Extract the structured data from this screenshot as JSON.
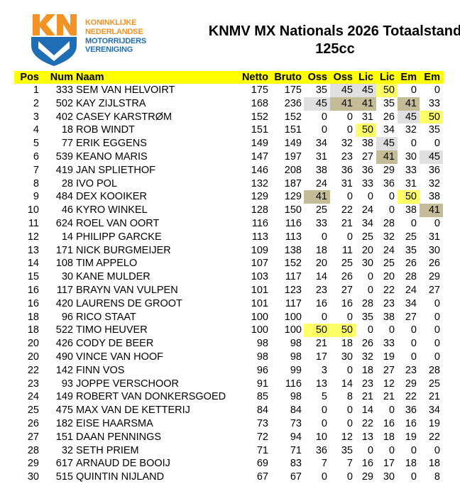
{
  "org": {
    "lines": [
      "KONINKLIJKE",
      "NEDERLANDSE",
      "MOTORRIJDERS",
      "VERENIGING"
    ],
    "logo_letters": "KNMV",
    "colors": {
      "orange": "#f39325",
      "blue": "#1f6db4"
    }
  },
  "title": {
    "line1": "KNMV MX Nationals 2026 Totaalstand",
    "line2": "125cc"
  },
  "highlight_colors": {
    "50": "#ffff66",
    "45": "#e0e0e0",
    "41": "#c4bc96"
  },
  "header_color": "#ffff00",
  "columns": [
    "Pos",
    "Num",
    "Naam",
    "Netto",
    "Bruto",
    "Oss",
    "Oss",
    "Lic",
    "Lic",
    "Em",
    "Em"
  ],
  "rows": [
    [
      "1",
      "333",
      "SEM VAN HELVOIRT",
      "175",
      "175",
      "35",
      "45",
      "45",
      "50",
      "0",
      "0"
    ],
    [
      "2",
      "502",
      "KAY ZIJLSTRA",
      "168",
      "236",
      "45",
      "41",
      "41",
      "35",
      "41",
      "33"
    ],
    [
      "3",
      "402",
      "CASEY KARSTRØM",
      "152",
      "152",
      "0",
      "0",
      "31",
      "26",
      "45",
      "50"
    ],
    [
      "4",
      "18",
      "ROB WINDT",
      "151",
      "151",
      "0",
      "0",
      "50",
      "34",
      "32",
      "35"
    ],
    [
      "5",
      "77",
      "ERIK EGGENS",
      "149",
      "149",
      "34",
      "32",
      "38",
      "45",
      "0",
      "0"
    ],
    [
      "6",
      "539",
      "KEANO MARIS",
      "147",
      "197",
      "31",
      "23",
      "27",
      "41",
      "30",
      "45"
    ],
    [
      "7",
      "419",
      "JAN SPLIETHOF",
      "146",
      "208",
      "38",
      "36",
      "36",
      "29",
      "33",
      "36"
    ],
    [
      "8",
      "28",
      "IVO POL",
      "132",
      "187",
      "24",
      "31",
      "33",
      "36",
      "31",
      "32"
    ],
    [
      "9",
      "484",
      "DEX KOOIKER",
      "129",
      "129",
      "41",
      "0",
      "0",
      "0",
      "50",
      "38"
    ],
    [
      "10",
      "46",
      "KYRO WINKEL",
      "128",
      "150",
      "25",
      "22",
      "24",
      "0",
      "38",
      "41"
    ],
    [
      "11",
      "624",
      "ROEL VAN OORT",
      "116",
      "116",
      "33",
      "21",
      "34",
      "28",
      "0",
      "0"
    ],
    [
      "12",
      "14",
      "PHILIPP GARCKE",
      "113",
      "113",
      "0",
      "0",
      "25",
      "32",
      "25",
      "31"
    ],
    [
      "13",
      "171",
      "NICK BURGMEIJER",
      "109",
      "138",
      "18",
      "11",
      "20",
      "24",
      "35",
      "30"
    ],
    [
      "14",
      "108",
      "TIM APPELO",
      "107",
      "152",
      "20",
      "25",
      "30",
      "25",
      "26",
      "26"
    ],
    [
      "15",
      "30",
      "KANE MULDER",
      "103",
      "117",
      "14",
      "26",
      "0",
      "20",
      "28",
      "29"
    ],
    [
      "16",
      "117",
      "BRAYN VAN VULPEN",
      "101",
      "123",
      "23",
      "27",
      "0",
      "22",
      "24",
      "27"
    ],
    [
      "16",
      "420",
      "LAURENS DE GROOT",
      "101",
      "117",
      "16",
      "16",
      "28",
      "23",
      "34",
      "0"
    ],
    [
      "18",
      "96",
      "RICO STAAT",
      "100",
      "100",
      "0",
      "0",
      "35",
      "38",
      "27",
      "0"
    ],
    [
      "18",
      "522",
      "TIMO HEUVER",
      "100",
      "100",
      "50",
      "50",
      "0",
      "0",
      "0",
      "0"
    ],
    [
      "20",
      "426",
      "CODY DE BEER",
      "98",
      "98",
      "21",
      "18",
      "26",
      "33",
      "0",
      "0"
    ],
    [
      "20",
      "490",
      "VINCE VAN HOOF",
      "98",
      "98",
      "17",
      "30",
      "32",
      "19",
      "0",
      "0"
    ],
    [
      "22",
      "142",
      "FINN VOS",
      "96",
      "99",
      "3",
      "0",
      "18",
      "27",
      "23",
      "28"
    ],
    [
      "23",
      "93",
      "JOPPE VERSCHOOR",
      "91",
      "116",
      "13",
      "14",
      "23",
      "12",
      "29",
      "25"
    ],
    [
      "24",
      "149",
      "ROBERT VAN DONKERSGOED",
      "85",
      "98",
      "5",
      "8",
      "21",
      "21",
      "22",
      "21"
    ],
    [
      "25",
      "475",
      "MAX VAN DE KETTERIJ",
      "84",
      "84",
      "0",
      "0",
      "14",
      "0",
      "36",
      "34"
    ],
    [
      "26",
      "182",
      "EISE HAARSMA",
      "73",
      "73",
      "0",
      "0",
      "22",
      "16",
      "16",
      "19"
    ],
    [
      "27",
      "151",
      "DAAN PENNINGS",
      "72",
      "94",
      "10",
      "12",
      "13",
      "18",
      "19",
      "22"
    ],
    [
      "28",
      "32",
      "SETH PRIEM",
      "71",
      "71",
      "36",
      "35",
      "0",
      "0",
      "0",
      "0"
    ],
    [
      "29",
      "617",
      "ARNAUD DE BOOIJ",
      "69",
      "83",
      "7",
      "7",
      "16",
      "17",
      "18",
      "18"
    ],
    [
      "30",
      "515",
      "QUINTIN NIJLAND",
      "67",
      "67",
      "0",
      "0",
      "29",
      "30",
      "0",
      "8"
    ]
  ]
}
